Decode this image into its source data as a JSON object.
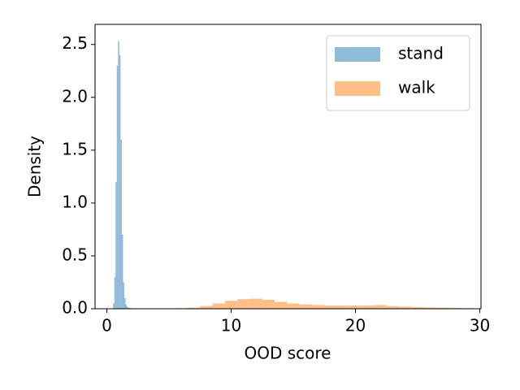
{
  "chart_data": {
    "type": "histogram",
    "x_label": "OOD score",
    "y_label": "Density",
    "xlim": [
      -0.95,
      30.1
    ],
    "ylim": [
      0,
      2.69
    ],
    "xticks": [
      0,
      10,
      20,
      30
    ],
    "yticks": [
      {
        "value": 0,
        "label": "0.0"
      },
      0.5,
      {
        "value": 1,
        "label": "1.0"
      },
      1.5,
      {
        "value": 2,
        "label": "2.0"
      },
      2.5
    ],
    "legend": "upper right",
    "series": [
      {
        "name": "stand",
        "color": "#1f77b4",
        "bins": [
          0.5,
          0.6,
          0.7,
          0.8,
          0.9,
          1.0,
          1.1,
          1.2,
          1.3,
          1.4,
          1.5,
          1.6,
          1.7,
          1.8,
          1.9,
          2.0
        ],
        "values": [
          0.05,
          0.3,
          1.2,
          2.3,
          2.53,
          2.4,
          1.6,
          0.7,
          0.25,
          0.1,
          0.04,
          0.02,
          0.01,
          0.01,
          0.005
        ]
      },
      {
        "name": "walk",
        "color": "#ff7f0e",
        "bins": [
          5.5,
          6.5,
          7.5,
          8.5,
          9.5,
          10.5,
          11.5,
          12.5,
          13.5,
          14.5,
          15.5,
          16.5,
          17.5,
          18.5,
          19.5,
          20.5,
          21.5,
          22.5,
          23.5,
          24.5,
          25.5,
          26.5,
          27.5,
          28.5,
          29.5
        ],
        "values": [
          0.005,
          0.01,
          0.025,
          0.05,
          0.075,
          0.09,
          0.095,
          0.085,
          0.065,
          0.05,
          0.04,
          0.035,
          0.03,
          0.03,
          0.03,
          0.03,
          0.035,
          0.025,
          0.02,
          0.015,
          0.012,
          0.01,
          0.008,
          0.006
        ]
      }
    ]
  }
}
